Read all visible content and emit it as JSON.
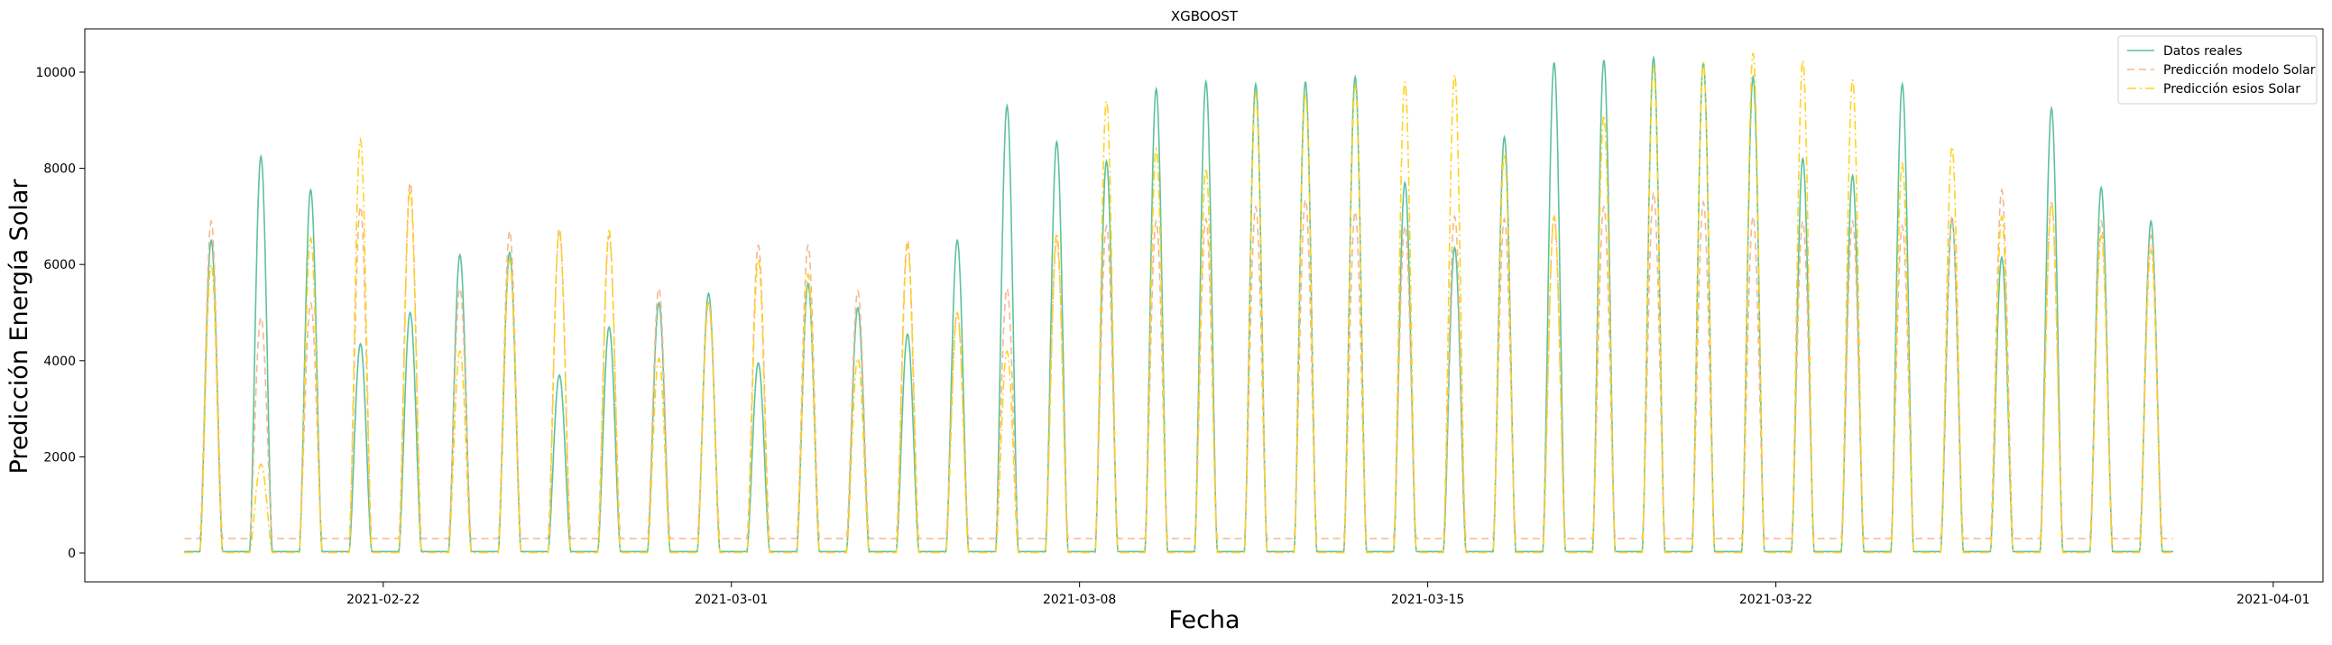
{
  "chart_data": {
    "type": "line",
    "title": "XGBOOST",
    "xlabel": "Fecha",
    "ylabel": "Predicción Energía Solar",
    "x_domain": [
      "2021-02-16",
      "2021-04-02"
    ],
    "ylim": [
      -600,
      10900
    ],
    "x_ticks": [
      "2021-02-22",
      "2021-03-01",
      "2021-03-08",
      "2021-03-15",
      "2021-03-22",
      "2021-04-01"
    ],
    "y_ticks": [
      0,
      2000,
      4000,
      6000,
      8000,
      10000
    ],
    "legend_position": "top-right",
    "grid": false,
    "day_dates": [
      "2021-02-18",
      "2021-02-19",
      "2021-02-20",
      "2021-02-21",
      "2021-02-22",
      "2021-02-23",
      "2021-02-24",
      "2021-02-25",
      "2021-02-26",
      "2021-02-27",
      "2021-02-28",
      "2021-03-01",
      "2021-03-02",
      "2021-03-03",
      "2021-03-04",
      "2021-03-05",
      "2021-03-06",
      "2021-03-07",
      "2021-03-08",
      "2021-03-09",
      "2021-03-10",
      "2021-03-11",
      "2021-03-12",
      "2021-03-13",
      "2021-03-14",
      "2021-03-15",
      "2021-03-16",
      "2021-03-17",
      "2021-03-18",
      "2021-03-19",
      "2021-03-20",
      "2021-03-21",
      "2021-03-22",
      "2021-03-23",
      "2021-03-24",
      "2021-03-25",
      "2021-03-26",
      "2021-03-27",
      "2021-03-28",
      "2021-03-29"
    ],
    "series": [
      {
        "name": "Datos reales",
        "color": "#5ec29a",
        "style": "solid",
        "daily_peak": [
          6500,
          8250,
          7550,
          4350,
          5000,
          6200,
          6250,
          3700,
          4700,
          5200,
          5400,
          3950,
          5600,
          5100,
          4550,
          6500,
          9300,
          8550,
          8150,
          9650,
          9800,
          9750,
          9800,
          9900,
          7700,
          6350,
          8650,
          10200,
          10250,
          10300,
          10200,
          9900,
          8200,
          7850,
          9750,
          6950,
          6150,
          9250,
          7600,
          6900
        ],
        "night_level": 30
      },
      {
        "name": "Predicción modelo Solar",
        "color": "#f2b98f",
        "style": "dashed",
        "daily_peak": [
          6900,
          4900,
          5200,
          7200,
          7700,
          5500,
          6700,
          6750,
          6600,
          5500,
          5200,
          6400,
          6400,
          5450,
          6500,
          5000,
          5500,
          6500,
          6800,
          6900,
          6950,
          7200,
          7350,
          7100,
          6800,
          7000,
          6950,
          7000,
          7200,
          7500,
          7300,
          7000,
          6900,
          6900,
          6800,
          7000,
          7550,
          7300,
          6900,
          6600
        ],
        "night_level": 300
      },
      {
        "name": "Predicción esios Solar",
        "color": "#ffd21f",
        "style": "dashdot",
        "daily_peak": [
          6000,
          1850,
          6550,
          8600,
          7550,
          4200,
          6100,
          6700,
          6700,
          4050,
          5200,
          6100,
          5800,
          4050,
          6400,
          5000,
          4200,
          6650,
          9400,
          8400,
          8000,
          9550,
          9550,
          9700,
          9800,
          9950,
          8300,
          7000,
          9100,
          10100,
          10200,
          10400,
          10250,
          9850,
          8100,
          8450,
          7000,
          7300,
          6600,
          6300
        ],
        "night_level": 10
      }
    ]
  }
}
